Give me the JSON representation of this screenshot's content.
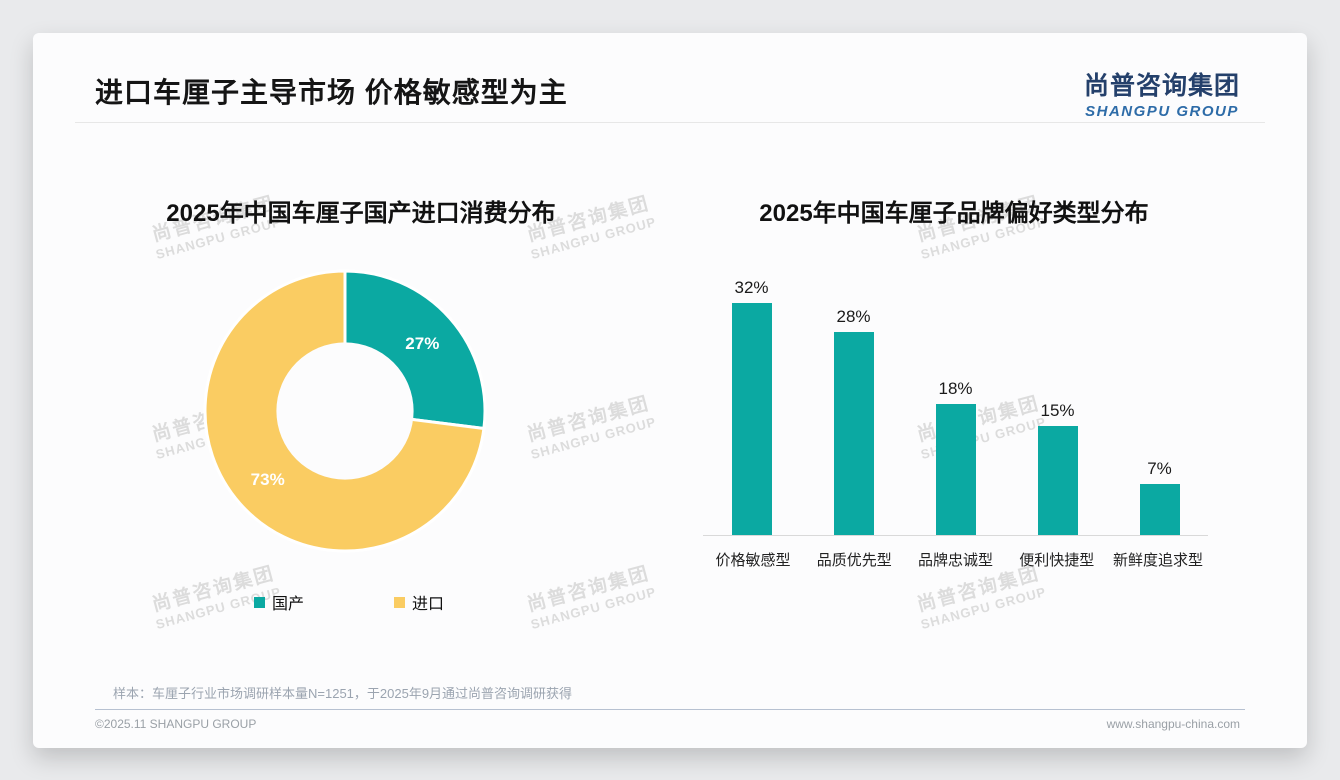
{
  "header": {
    "title": "进口车厘子主导市场 价格敏感型为主",
    "logo_cn": "尚普咨询集团",
    "logo_en": "SHANGPU GROUP"
  },
  "watermark": {
    "cn": "尚普咨询集团",
    "en": "SHANGPU GROUP"
  },
  "colors": {
    "teal": "#0BA9A2",
    "yellow": "#FACC62",
    "logo_cn": "#24406B",
    "logo_en": "#2E6CA8"
  },
  "chart_data": [
    {
      "type": "pie",
      "subtype": "donut",
      "title": "2025年中国车厘子国产进口消费分布",
      "labels": [
        "国产",
        "进口"
      ],
      "values": [
        27,
        73
      ],
      "value_labels": [
        "27%",
        "73%"
      ],
      "colors": [
        "#0BA9A2",
        "#FACC62"
      ],
      "start_angle": "top",
      "direction": "clockwise",
      "inner_radius_ratio": 0.49,
      "legend_position": "bottom"
    },
    {
      "type": "bar",
      "title": "2025年中国车厘子品牌偏好类型分布",
      "categories": [
        "价格敏感型",
        "品质优先型",
        "品牌忠诚型",
        "便利快捷型",
        "新鲜度追求型"
      ],
      "values": [
        32,
        28,
        18,
        15,
        7
      ],
      "value_labels": [
        "32%",
        "28%",
        "18%",
        "15%",
        "7%"
      ],
      "bar_color": "#0BA9A2",
      "ylim": [
        0,
        35
      ],
      "grid": false,
      "value_label_position": "above",
      "legend_position": "none"
    }
  ],
  "footer": {
    "note": "样本：车厘子行业市场调研样本量N=1251，于2025年9月通过尚普咨询调研获得",
    "left": "©2025.11 SHANGPU GROUP",
    "right": "www.shangpu-china.com"
  }
}
